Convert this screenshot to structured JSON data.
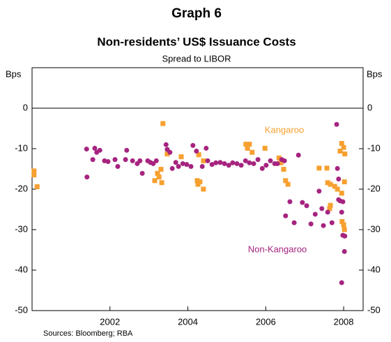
{
  "chart_data": {
    "type": "scatter",
    "title": "Graph 6",
    "subtitle": "Non-residents’ US$ Issuance Costs",
    "description": "Spread to LIBOR",
    "ylabel": "Bps",
    "y2label": "Bps",
    "source": "Sources: Bloomberg; RBA",
    "annotations": [
      "Kangaroo",
      "Non-Kangaroo"
    ],
    "xlim": [
      2000,
      2008.5
    ],
    "xticks": [
      2002,
      2004,
      2006,
      2008
    ],
    "ylim": [
      -50,
      10
    ],
    "yticks": [
      -50,
      -40,
      -30,
      -20,
      -10,
      0
    ],
    "series": [
      {
        "name": "Kangaroo",
        "color": "#f7a030",
        "marker": "square",
        "x": [
          2000.05,
          2000.05,
          2000.13,
          2003.36,
          2003.22,
          2003.15,
          2003.26,
          2003.33,
          2003.31,
          2003.47,
          2003.83,
          2004.28,
          2004.24,
          2004.26,
          2004.31,
          2004.4,
          2004.4,
          2005.49,
          2005.58,
          2005.65,
          2005.53,
          2005.98,
          2006.34,
          2006.39,
          2006.51,
          2006.57,
          2006.46,
          2007.37,
          2007.57,
          2007.59,
          2007.66,
          2007.77,
          2007.84,
          2007.95,
          2007.66,
          2007.64,
          2007.91,
          2007.95,
          2008.0,
          2008.03,
          2008.02,
          2008.0,
          2008.02,
          2007.96
        ],
        "values": [
          -15.5,
          -16.5,
          -19.4,
          -3.8,
          -16.1,
          -17.9,
          -17.0,
          -18.4,
          -15.1,
          -11.3,
          -12.0,
          -11.5,
          -17.9,
          -18.8,
          -18.2,
          -20.0,
          -13.0,
          -8.9,
          -8.9,
          -10.9,
          -9.9,
          -9.9,
          -12.3,
          -13.5,
          -17.9,
          -18.8,
          -15.1,
          -14.8,
          -14.8,
          -18.4,
          -18.8,
          -19.3,
          -20.0,
          -21.0,
          -24.0,
          -24.8,
          -10.6,
          -8.7,
          -9.7,
          -11.3,
          -18.2,
          -28.8,
          -30.0,
          -28.0
        ]
      },
      {
        "name": "Non-Kangaroo",
        "color": "#a6247f",
        "marker": "circle",
        "x": [
          2001.4,
          2001.41,
          2001.61,
          2001.66,
          2001.74,
          2001.56,
          2001.86,
          2001.95,
          2002.13,
          2002.2,
          2002.4,
          2002.43,
          2002.58,
          2002.7,
          2002.77,
          2002.83,
          2002.97,
          2003.04,
          2003.11,
          2003.19,
          2003.44,
          2003.47,
          2003.54,
          2003.6,
          2003.69,
          2003.76,
          2003.87,
          2003.97,
          2004.13,
          2004.22,
          2004.08,
          2004.37,
          2004.47,
          2004.51,
          2004.62,
          2004.72,
          2004.83,
          2004.94,
          2005.05,
          2005.15,
          2005.26,
          2005.37,
          2005.48,
          2005.58,
          2005.69,
          2005.8,
          2005.91,
          2006.01,
          2006.12,
          2006.23,
          2006.3,
          2006.41,
          2006.48,
          2006.51,
          2006.62,
          2006.73,
          2006.84,
          2006.94,
          2007.05,
          2007.16,
          2007.27,
          2007.37,
          2007.44,
          2007.48,
          2007.59,
          2007.7,
          2007.82,
          2007.84,
          2007.87,
          2007.91,
          2007.95,
          2007.98,
          2008.02,
          2007.95,
          2008.03,
          2007.98,
          2007.87
        ],
        "values": [
          -10.1,
          -17.0,
          -9.9,
          -10.9,
          -10.4,
          -12.7,
          -13.0,
          -13.2,
          -12.7,
          -14.4,
          -12.7,
          -10.4,
          -13.0,
          -13.7,
          -13.0,
          -16.1,
          -13.0,
          -13.4,
          -13.7,
          -13.0,
          -9.0,
          -10.2,
          -10.9,
          -14.9,
          -13.4,
          -14.4,
          -13.7,
          -13.9,
          -9.2,
          -10.6,
          -14.4,
          -14.4,
          -9.9,
          -13.0,
          -13.9,
          -13.5,
          -13.4,
          -13.7,
          -14.1,
          -13.5,
          -13.7,
          -14.1,
          -13.0,
          -13.5,
          -13.7,
          -12.7,
          -14.9,
          -14.1,
          -13.0,
          -13.7,
          -13.7,
          -12.7,
          -13.0,
          -26.6,
          -23.1,
          -28.3,
          -11.6,
          -23.3,
          -24.1,
          -28.6,
          -26.2,
          -20.5,
          -24.8,
          -29.0,
          -25.7,
          -28.3,
          -4.0,
          -14.9,
          -22.6,
          -22.9,
          -25.7,
          -31.4,
          -35.4,
          -43.1,
          -31.6,
          -23.1,
          -17.5
        ]
      }
    ]
  }
}
